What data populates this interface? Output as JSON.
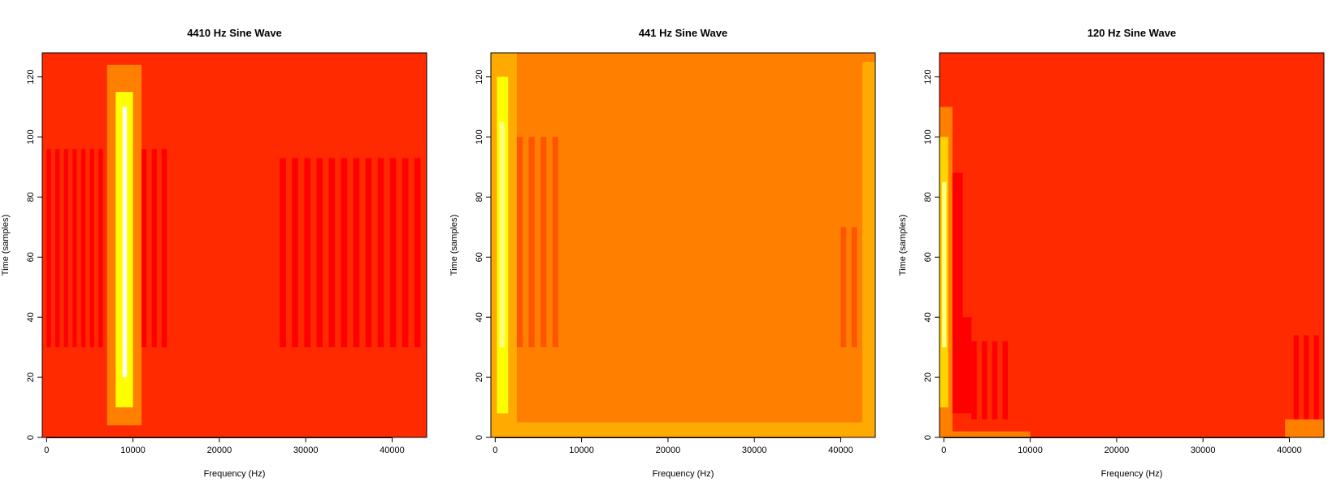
{
  "palette": {
    "heat": [
      "#ff0000",
      "#ff2a00",
      "#ff5500",
      "#ff8000",
      "#ffaa00",
      "#ffd400",
      "#ffff00",
      "#ffff80",
      "#ffffff"
    ]
  },
  "chart_data": [
    {
      "type": "heatmap",
      "title": "4410 Hz Sine Wave",
      "xlabel": "Frequency (Hz)",
      "ylabel": "Time (samples)",
      "xlim": [
        -500,
        44000
      ],
      "ylim": [
        0,
        128
      ],
      "xticks": [
        0,
        10000,
        20000,
        30000,
        40000
      ],
      "xtick_labels": [
        "0",
        "10000",
        "20000",
        "30000",
        "40000"
      ],
      "yticks": [
        0,
        20,
        40,
        60,
        80,
        100,
        120
      ],
      "ytick_labels": [
        "0",
        "20",
        "40",
        "60",
        "80",
        "100",
        "120"
      ],
      "background_level": 1,
      "peak_frequency_hz": 9000,
      "grid": false,
      "legend": "none",
      "regions": [
        {
          "x0": 0,
          "x1": 44000,
          "y0": 0,
          "y1": 30,
          "level": 1
        },
        {
          "x0": 0,
          "x1": 22000,
          "y0": 30,
          "y1": 128,
          "level": 1
        },
        {
          "x0": 7000,
          "x1": 11000,
          "y0": 4,
          "y1": 124,
          "level": 3
        },
        {
          "x0": 8000,
          "x1": 10000,
          "y0": 10,
          "y1": 115,
          "level": 6
        },
        {
          "x0": 8800,
          "x1": 9300,
          "y0": 20,
          "y1": 110,
          "level": 8
        }
      ],
      "stripes": [
        {
          "x0": 0,
          "x1": 7000,
          "y0": 30,
          "y1": 96,
          "level": 0,
          "count": 7
        },
        {
          "x0": 11000,
          "x1": 14500,
          "y0": 30,
          "y1": 96,
          "level": 0,
          "count": 3
        },
        {
          "x0": 27000,
          "x1": 44000,
          "y0": 30,
          "y1": 93,
          "level": 0,
          "count": 12
        }
      ]
    },
    {
      "type": "heatmap",
      "title": "441 Hz Sine Wave",
      "xlabel": "Frequency (Hz)",
      "ylabel": "Time (samples)",
      "xlim": [
        -500,
        44000
      ],
      "ylim": [
        0,
        128
      ],
      "xticks": [
        0,
        10000,
        20000,
        30000,
        40000
      ],
      "xtick_labels": [
        "0",
        "10000",
        "20000",
        "30000",
        "40000"
      ],
      "yticks": [
        0,
        20,
        40,
        60,
        80,
        100,
        120
      ],
      "ytick_labels": [
        "0",
        "20",
        "40",
        "60",
        "80",
        "100",
        "120"
      ],
      "background_level": 3,
      "peak_frequency_hz": 700,
      "grid": false,
      "legend": "none",
      "regions": [
        {
          "x0": -500,
          "x1": 44000,
          "y0": 0,
          "y1": 5,
          "level": 4
        },
        {
          "x0": -500,
          "x1": 2500,
          "y0": 0,
          "y1": 128,
          "level": 4
        },
        {
          "x0": 200,
          "x1": 1500,
          "y0": 8,
          "y1": 120,
          "level": 6
        },
        {
          "x0": 500,
          "x1": 1100,
          "y0": 30,
          "y1": 105,
          "level": 7
        },
        {
          "x0": 42500,
          "x1": 44000,
          "y0": 0,
          "y1": 125,
          "level": 4
        }
      ],
      "stripes": [
        {
          "x0": 2500,
          "x1": 8000,
          "y0": 30,
          "y1": 100,
          "level": 2,
          "count": 4
        },
        {
          "x0": 40000,
          "x1": 42500,
          "y0": 30,
          "y1": 70,
          "level": 2,
          "count": 2
        }
      ]
    },
    {
      "type": "heatmap",
      "title": "120 Hz Sine Wave",
      "xlabel": "Frequency (Hz)",
      "ylabel": "Time (samples)",
      "xlim": [
        -500,
        44000
      ],
      "ylim": [
        0,
        128
      ],
      "xticks": [
        0,
        10000,
        20000,
        30000,
        40000
      ],
      "xtick_labels": [
        "0",
        "10000",
        "20000",
        "30000",
        "40000"
      ],
      "yticks": [
        0,
        20,
        40,
        60,
        80,
        100,
        120
      ],
      "ytick_labels": [
        "0",
        "20",
        "40",
        "60",
        "80",
        "100",
        "120"
      ],
      "background_level": 1,
      "peak_frequency_hz": 200,
      "grid": false,
      "legend": "none",
      "regions": [
        {
          "x0": -500,
          "x1": 1000,
          "y0": 0,
          "y1": 110,
          "level": 3
        },
        {
          "x0": -500,
          "x1": 500,
          "y0": 10,
          "y1": 100,
          "level": 5
        },
        {
          "x0": -200,
          "x1": 300,
          "y0": 30,
          "y1": 85,
          "level": 7
        },
        {
          "x0": 1000,
          "x1": 2200,
          "y0": 8,
          "y1": 88,
          "level": 0
        },
        {
          "x0": 2200,
          "x1": 3200,
          "y0": 8,
          "y1": 40,
          "level": 0
        },
        {
          "x0": -500,
          "x1": 10000,
          "y0": 0,
          "y1": 2,
          "level": 3
        },
        {
          "x0": 39500,
          "x1": 44000,
          "y0": 0,
          "y1": 6,
          "level": 3
        }
      ],
      "stripes": [
        {
          "x0": 3200,
          "x1": 8000,
          "y0": 6,
          "y1": 32,
          "level": 0,
          "count": 4
        },
        {
          "x0": 40500,
          "x1": 44000,
          "y0": 6,
          "y1": 34,
          "level": 0,
          "count": 3
        }
      ]
    }
  ]
}
